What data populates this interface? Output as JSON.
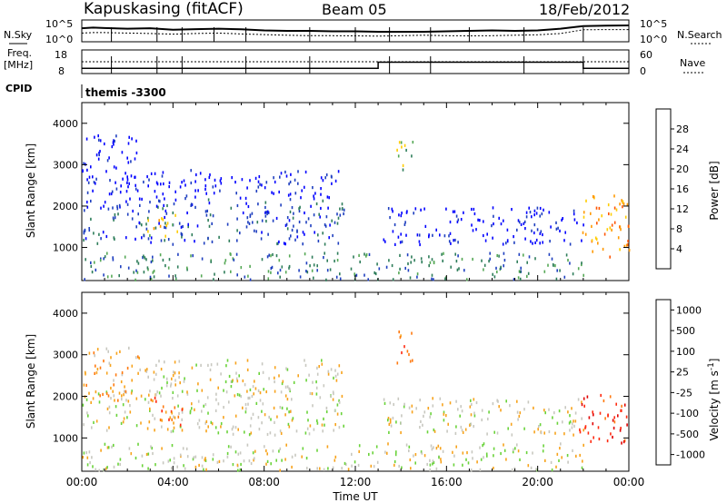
{
  "header": {
    "station": "Kapuskasing (fitACF)",
    "beam": "Beam 05",
    "date": "18/Feb/2012"
  },
  "chart_data": [
    {
      "type": "line",
      "panel": "noise",
      "ylabel_left": "N.Sky",
      "ylabel_right": "N.Search",
      "yticks_left": [
        "10^5",
        "10^0"
      ],
      "yticks_right": [
        "10^5",
        "10^0"
      ],
      "x_hours": [
        0,
        0.5,
        1,
        2,
        3,
        4,
        5,
        6,
        7,
        8,
        9,
        10,
        11,
        12,
        13,
        14,
        15,
        16,
        17,
        18,
        19,
        20,
        21,
        22,
        23,
        24
      ],
      "sky_level": [
        0.62,
        0.65,
        0.63,
        0.6,
        0.62,
        0.55,
        0.58,
        0.6,
        0.57,
        0.52,
        0.5,
        0.5,
        0.48,
        0.48,
        0.46,
        0.46,
        0.46,
        0.48,
        0.5,
        0.52,
        0.5,
        0.52,
        0.6,
        0.72,
        0.74,
        0.75
      ],
      "search_level": [
        0.4,
        0.42,
        0.42,
        0.4,
        0.38,
        0.35,
        0.38,
        0.4,
        0.36,
        0.33,
        0.3,
        0.28,
        0.28,
        0.27,
        0.26,
        0.28,
        0.3,
        0.28,
        0.27,
        0.28,
        0.3,
        0.32,
        0.38,
        0.55,
        0.56,
        0.56
      ]
    },
    {
      "type": "line",
      "panel": "frequency",
      "ylabel_left": "Freq.\n[MHz]",
      "ylabel_right": "Nave",
      "yticks_left": [
        "18",
        "8"
      ],
      "yticks_right": [
        "60",
        "0"
      ],
      "freq_steps": [
        {
          "start": 0,
          "end": 13,
          "value": 10.2
        },
        {
          "start": 13,
          "end": 22,
          "value": 12.8
        },
        {
          "start": 22,
          "end": 24,
          "value": 10.2
        }
      ],
      "nave_level": 30
    },
    {
      "type": "table",
      "panel": "cpid",
      "label": "CPID",
      "text": "themis -3300"
    },
    {
      "type": "heatmap",
      "panel": "power",
      "ylabel": "Slant Range [km]",
      "yticks": [
        "1000",
        "2000",
        "3000",
        "4000"
      ],
      "ylim": [
        200,
        4500
      ],
      "colorbar_label": "Power [dB]",
      "colorbar_ticks": [
        "4",
        "8",
        "12",
        "16",
        "20",
        "24",
        "28"
      ],
      "colors": [
        "#0000ff",
        "#1f3fbf",
        "#2e7d5a",
        "#55a855",
        "#ffcc00",
        "#ff9900",
        "#ff5500",
        "#ff0000"
      ],
      "regions": [
        {
          "h0": 0,
          "h1": 11.5,
          "r0": 1100,
          "r1": 2200,
          "level": 1
        },
        {
          "h0": 2.5,
          "h1": 11.5,
          "r0": 2200,
          "r1": 2900,
          "level": 0
        },
        {
          "h0": 2.8,
          "h1": 4.2,
          "r0": 1300,
          "r1": 1900,
          "level": 4
        },
        {
          "h0": 0,
          "h1": 2.5,
          "r0": 1900,
          "r1": 3800,
          "level": 0
        },
        {
          "h0": 0,
          "h1": 22,
          "r0": 250,
          "r1": 900,
          "level": 2
        },
        {
          "h0": 13.2,
          "h1": 22,
          "r0": 1100,
          "r1": 2000,
          "level": 0
        },
        {
          "h0": 13.8,
          "h1": 14.6,
          "r0": 2800,
          "r1": 3600,
          "level": 3
        },
        {
          "h0": 21.8,
          "h1": 24,
          "r0": 800,
          "r1": 2300,
          "level": 5
        }
      ]
    },
    {
      "type": "heatmap",
      "panel": "velocity",
      "ylabel": "Slant Range [km]",
      "yticks": [
        "1000",
        "2000",
        "3000",
        "4000"
      ],
      "ylim": [
        200,
        4500
      ],
      "xlabel": "Time UT",
      "xticks": [
        "00:00",
        "04:00",
        "08:00",
        "12:00",
        "16:00",
        "20:00",
        "00:00"
      ],
      "colorbar_label": "Velocity [m s^-1]",
      "colorbar_ticks": [
        "1000",
        "500",
        "100",
        "25",
        "-25",
        "-100",
        "-500",
        "-1000"
      ],
      "colors": [
        "#1a2fb0",
        "#2f6fb5",
        "#3c9a4a",
        "#6ad33a",
        "#c8c8c0",
        "#f7a31c",
        "#ff7a10",
        "#ff2a10",
        "#e00000"
      ],
      "regions": [
        {
          "h0": 0,
          "h1": 11.5,
          "r0": 1100,
          "r1": 2200,
          "level": 4
        },
        {
          "h0": 2.5,
          "h1": 11.5,
          "r0": 2200,
          "r1": 2900,
          "level": 4
        },
        {
          "h0": 2.8,
          "h1": 4.5,
          "r0": 1300,
          "r1": 2000,
          "level": 6
        },
        {
          "h0": 0,
          "h1": 2.5,
          "r0": 1900,
          "r1": 3200,
          "level": 5
        },
        {
          "h0": 0,
          "h1": 22,
          "r0": 250,
          "r1": 900,
          "level": 4
        },
        {
          "h0": 13.2,
          "h1": 22,
          "r0": 1100,
          "r1": 2000,
          "level": 4
        },
        {
          "h0": 13.8,
          "h1": 14.6,
          "r0": 2800,
          "r1": 3600,
          "level": 6
        },
        {
          "h0": 11.0,
          "h1": 11.5,
          "r0": 1600,
          "r1": 1900,
          "level": 3
        },
        {
          "h0": 21.8,
          "h1": 24,
          "r0": 900,
          "r1": 2100,
          "level": 7
        }
      ]
    }
  ]
}
